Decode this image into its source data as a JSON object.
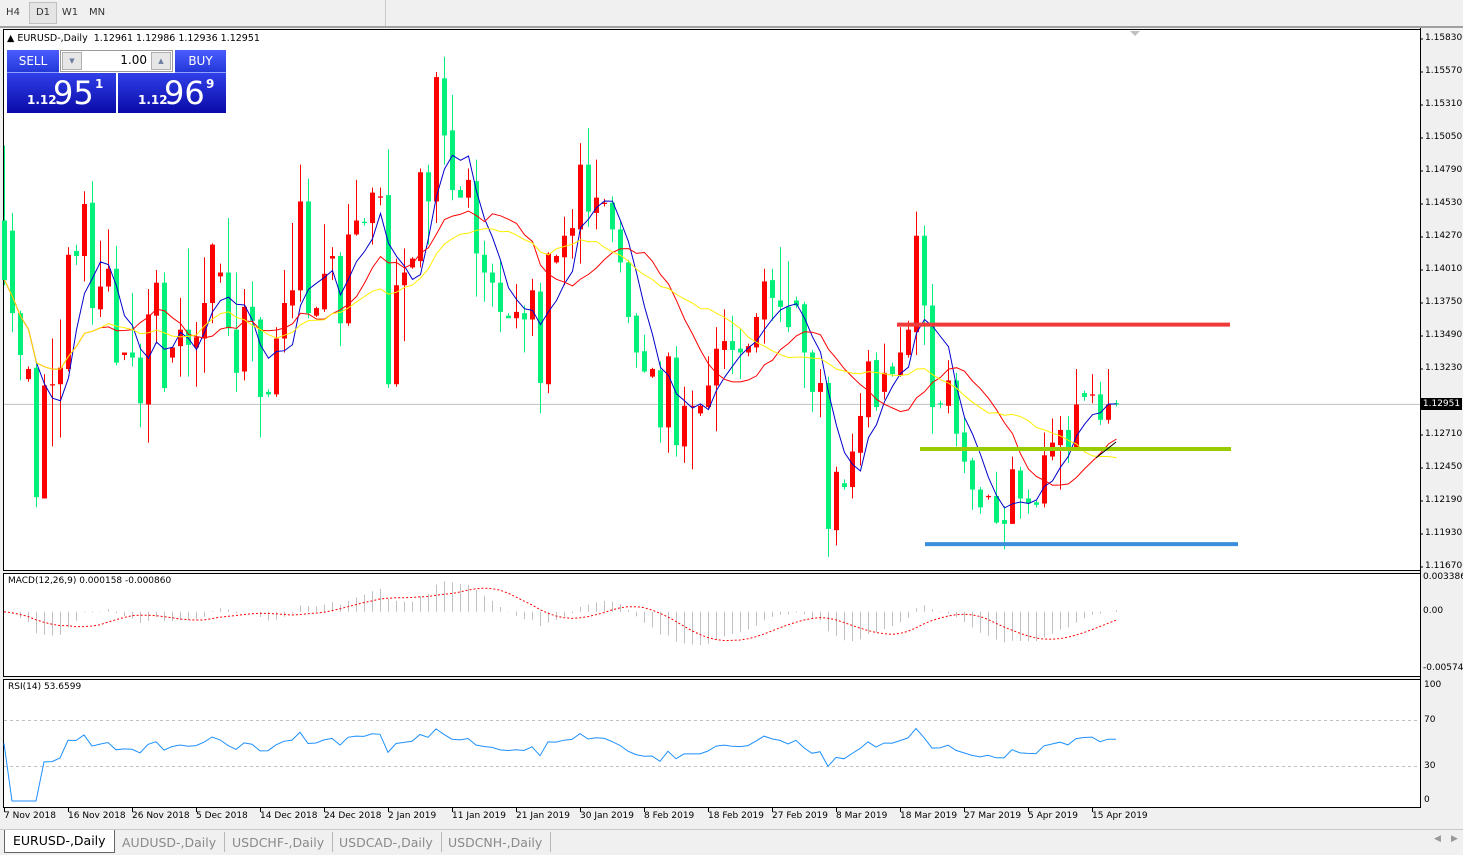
{
  "toolbar": {
    "timeframes": [
      {
        "label": "H4",
        "active": false
      },
      {
        "label": "D1",
        "active": true
      },
      {
        "label": "W1",
        "active": false
      },
      {
        "label": "MN",
        "active": false
      }
    ]
  },
  "chart": {
    "symbol_title": "EURUSD-,Daily",
    "ohlc_text": "1.12961 1.12986 1.12936 1.12951",
    "current_price": "1.12951",
    "colors": {
      "bull": "#ff0000",
      "bear": "#00f07a",
      "ma_fast": "#0000cc",
      "ma_mid": "#ff0000",
      "ma_slow": "#ffee00",
      "macd_hist": "#c0c0c0",
      "macd_signal": "#ff0000",
      "rsi": "#1e90ff",
      "hline_red": "#f03a3a",
      "hline_green": "#99cc00",
      "hline_blue": "#3a8fdc"
    },
    "price_axis": [
      "1.15830",
      "1.15570",
      "1.15310",
      "1.15050",
      "1.14790",
      "1.14530",
      "1.14270",
      "1.14010",
      "1.13750",
      "1.13490",
      "1.13230",
      "1.12710",
      "1.12450",
      "1.12190",
      "1.11930",
      "1.11670"
    ],
    "date_axis": [
      "7 Nov 2018",
      "16 Nov 2018",
      "26 Nov 2018",
      "5 Dec 2018",
      "14 Dec 2018",
      "24 Dec 2018",
      "2 Jan 2019",
      "11 Jan 2019",
      "21 Jan 2019",
      "30 Jan 2019",
      "8 Feb 2019",
      "18 Feb 2019",
      "27 Feb 2019",
      "8 Mar 2019",
      "18 Mar 2019",
      "27 Mar 2019",
      "5 Apr 2019",
      "15 Apr 2019"
    ],
    "horizontal_lines": [
      {
        "color": "hline_red",
        "price": 1.1358
      },
      {
        "color": "hline_green",
        "price": 1.126
      },
      {
        "color": "hline_blue",
        "price": 1.1185
      }
    ]
  },
  "one_click": {
    "sell_label": "SELL",
    "buy_label": "BUY",
    "lot": "1.00",
    "sell_price": {
      "prefix": "1.12",
      "big": "95",
      "sup": "1"
    },
    "buy_price": {
      "prefix": "1.12",
      "big": "96",
      "sup": "9"
    }
  },
  "macd": {
    "title": "MACD(12,26,9) 0.000158 -0.000860",
    "axis": [
      "0.003386",
      "0.00",
      "-0.00574"
    ],
    "range": [
      -0.00574,
      0.003386
    ]
  },
  "rsi": {
    "title": "RSI(14) 53.6599",
    "axis": [
      "100",
      "70",
      "30",
      "0"
    ],
    "levels": [
      70,
      30
    ]
  },
  "tabs": [
    {
      "label": "EURUSD-,Daily",
      "active": true
    },
    {
      "label": "AUDUSD-,Daily",
      "active": false
    },
    {
      "label": "USDCHF-,Daily",
      "active": false
    },
    {
      "label": "USDCAD-,Daily",
      "active": false
    },
    {
      "label": "USDCNH-,Daily",
      "active": false
    }
  ],
  "chart_data": {
    "type": "candlestick",
    "price_range": [
      1.1167,
      1.1583
    ],
    "ohlc": [
      [
        1.144,
        1.1499,
        1.1389,
        1.1393
      ],
      [
        1.1432,
        1.1446,
        1.1352,
        1.1367
      ],
      [
        1.1367,
        1.1369,
        1.1314,
        1.1334
      ],
      [
        1.1315,
        1.1325,
        1.1313,
        1.1323
      ],
      [
        1.1324,
        1.1329,
        1.1214,
        1.1222
      ],
      [
        1.1221,
        1.1319,
        1.1221,
        1.131
      ],
      [
        1.131,
        1.1347,
        1.1262,
        1.1311
      ],
      [
        1.1311,
        1.1362,
        1.1269,
        1.1324
      ],
      [
        1.1323,
        1.1419,
        1.1321,
        1.1413
      ],
      [
        1.1416,
        1.1421,
        1.1405,
        1.1412
      ],
      [
        1.1412,
        1.1463,
        1.1392,
        1.1453
      ],
      [
        1.1454,
        1.1471,
        1.1358,
        1.1371
      ],
      [
        1.137,
        1.1424,
        1.1364,
        1.1388
      ],
      [
        1.1388,
        1.1433,
        1.1384,
        1.1402
      ],
      [
        1.1402,
        1.142,
        1.1326,
        1.1328
      ],
      [
        1.1334,
        1.1336,
        1.133,
        1.1336
      ],
      [
        1.1336,
        1.1383,
        1.1325,
        1.1332
      ],
      [
        1.1332,
        1.1343,
        1.1277,
        1.1296
      ],
      [
        1.1295,
        1.1386,
        1.1265,
        1.1366
      ],
      [
        1.1365,
        1.1401,
        1.1343,
        1.1391
      ],
      [
        1.1391,
        1.1399,
        1.1305,
        1.1308
      ],
      [
        1.1332,
        1.134,
        1.1328,
        1.134
      ],
      [
        1.1341,
        1.1379,
        1.1317,
        1.1354
      ],
      [
        1.1354,
        1.1418,
        1.1317,
        1.1342
      ],
      [
        1.134,
        1.136,
        1.1309,
        1.1348
      ],
      [
        1.1347,
        1.1411,
        1.132,
        1.1375
      ],
      [
        1.1375,
        1.1422,
        1.1359,
        1.1421
      ],
      [
        1.1396,
        1.1406,
        1.1391,
        1.1399
      ],
      [
        1.1399,
        1.1442,
        1.1349,
        1.1355
      ],
      [
        1.1354,
        1.1399,
        1.1305,
        1.132
      ],
      [
        1.1321,
        1.1386,
        1.1314,
        1.1372
      ],
      [
        1.1372,
        1.1392,
        1.1329,
        1.1361
      ],
      [
        1.1362,
        1.1364,
        1.1269,
        1.1301
      ],
      [
        1.1305,
        1.1307,
        1.1301,
        1.1303
      ],
      [
        1.1303,
        1.1356,
        1.1301,
        1.1347
      ],
      [
        1.1347,
        1.1401,
        1.1336,
        1.1375
      ],
      [
        1.1373,
        1.1438,
        1.1363,
        1.1385
      ],
      [
        1.1385,
        1.1484,
        1.1376,
        1.1455
      ],
      [
        1.1455,
        1.1473,
        1.1363,
        1.1367
      ],
      [
        1.1365,
        1.1372,
        1.1364,
        1.1371
      ],
      [
        1.137,
        1.1437,
        1.1368,
        1.1398
      ],
      [
        1.141,
        1.1419,
        1.1393,
        1.1412
      ],
      [
        1.1412,
        1.1415,
        1.1341,
        1.1359
      ],
      [
        1.1359,
        1.1453,
        1.1357,
        1.1429
      ],
      [
        1.1429,
        1.1472,
        1.1428,
        1.144
      ],
      [
        1.1439,
        1.1442,
        1.1436,
        1.1438
      ],
      [
        1.1438,
        1.1466,
        1.1421,
        1.1462
      ],
      [
        1.1458,
        1.1466,
        1.1452,
        1.1459
      ],
      [
        1.146,
        1.1496,
        1.1308,
        1.1311
      ],
      [
        1.1311,
        1.141,
        1.1309,
        1.1389
      ],
      [
        1.1389,
        1.1418,
        1.1345,
        1.1399
      ],
      [
        1.1403,
        1.1411,
        1.1402,
        1.141
      ],
      [
        1.1408,
        1.1481,
        1.1403,
        1.1478
      ],
      [
        1.1478,
        1.1484,
        1.1421,
        1.1455
      ],
      [
        1.1455,
        1.1557,
        1.1438,
        1.1553
      ],
      [
        1.1552,
        1.1569,
        1.1484,
        1.1507
      ],
      [
        1.1511,
        1.1539,
        1.1456,
        1.1464
      ],
      [
        1.1464,
        1.1467,
        1.1458,
        1.1458
      ],
      [
        1.1458,
        1.1481,
        1.145,
        1.1472
      ],
      [
        1.1471,
        1.1488,
        1.138,
        1.1414
      ],
      [
        1.1413,
        1.1424,
        1.1376,
        1.1399
      ],
      [
        1.1399,
        1.1406,
        1.1372,
        1.1391
      ],
      [
        1.1391,
        1.1409,
        1.1352,
        1.1368
      ],
      [
        1.1365,
        1.1367,
        1.1363,
        1.1363
      ],
      [
        1.1363,
        1.139,
        1.1355,
        1.1368
      ],
      [
        1.1367,
        1.1373,
        1.1336,
        1.1362
      ],
      [
        1.1362,
        1.1394,
        1.1349,
        1.1385
      ],
      [
        1.1384,
        1.1391,
        1.1288,
        1.1312
      ],
      [
        1.1311,
        1.1415,
        1.1304,
        1.1414
      ],
      [
        1.1407,
        1.1413,
        1.1406,
        1.1412
      ],
      [
        1.1411,
        1.1443,
        1.1389,
        1.1428
      ],
      [
        1.1428,
        1.1449,
        1.141,
        1.1434
      ],
      [
        1.1433,
        1.1501,
        1.1406,
        1.1484
      ],
      [
        1.1484,
        1.1513,
        1.1435,
        1.1447
      ],
      [
        1.1446,
        1.1488,
        1.1433,
        1.1458
      ],
      [
        1.1453,
        1.1457,
        1.1451,
        1.1454
      ],
      [
        1.1454,
        1.1459,
        1.1423,
        1.1433
      ],
      [
        1.1433,
        1.1439,
        1.1399,
        1.1407
      ],
      [
        1.1407,
        1.1409,
        1.1359,
        1.1364
      ],
      [
        1.1365,
        1.1367,
        1.1324,
        1.1336
      ],
      [
        1.1337,
        1.135,
        1.132,
        1.1321
      ],
      [
        1.1317,
        1.1324,
        1.1316,
        1.1323
      ],
      [
        1.1322,
        1.1329,
        1.1265,
        1.1277
      ],
      [
        1.1277,
        1.1336,
        1.1257,
        1.1333
      ],
      [
        1.1332,
        1.1341,
        1.1254,
        1.1263
      ],
      [
        1.1262,
        1.1309,
        1.1249,
        1.1294
      ],
      [
        1.1293,
        1.1306,
        1.1244,
        1.1294
      ],
      [
        1.1288,
        1.1295,
        1.1286,
        1.1294
      ],
      [
        1.1293,
        1.1333,
        1.1292,
        1.131
      ],
      [
        1.131,
        1.1356,
        1.1274,
        1.1339
      ],
      [
        1.1338,
        1.137,
        1.1323,
        1.1345
      ],
      [
        1.1345,
        1.1365,
        1.1319,
        1.1338
      ],
      [
        1.1339,
        1.1355,
        1.1315,
        1.1336
      ],
      [
        1.1336,
        1.1343,
        1.1333,
        1.1341
      ],
      [
        1.134,
        1.1367,
        1.1336,
        1.1364
      ],
      [
        1.1362,
        1.1402,
        1.1343,
        1.1392
      ],
      [
        1.1393,
        1.1402,
        1.1361,
        1.1379
      ],
      [
        1.1377,
        1.1419,
        1.136,
        1.1372
      ],
      [
        1.1372,
        1.1408,
        1.1352,
        1.1356
      ],
      [
        1.1377,
        1.138,
        1.1371,
        1.1373
      ],
      [
        1.1374,
        1.1376,
        1.1308,
        1.1336
      ],
      [
        1.1336,
        1.1338,
        1.1289,
        1.1305
      ],
      [
        1.1305,
        1.1323,
        1.1285,
        1.1312
      ],
      [
        1.1312,
        1.1317,
        1.1175,
        1.1197
      ],
      [
        1.1196,
        1.1246,
        1.1184,
        1.1242
      ],
      [
        1.1233,
        1.1236,
        1.1228,
        1.123
      ],
      [
        1.123,
        1.1272,
        1.1221,
        1.1258
      ],
      [
        1.1257,
        1.1304,
        1.1247,
        1.1286
      ],
      [
        1.1285,
        1.1338,
        1.1277,
        1.1329
      ],
      [
        1.133,
        1.1336,
        1.129,
        1.1293
      ],
      [
        1.1305,
        1.1343,
        1.1299,
        1.132
      ],
      [
        1.1325,
        1.1328,
        1.1317,
        1.1319
      ],
      [
        1.1318,
        1.1356,
        1.1317,
        1.1336
      ],
      [
        1.1334,
        1.1361,
        1.1332,
        1.1354
      ],
      [
        1.1352,
        1.1447,
        1.1334,
        1.1428
      ],
      [
        1.1428,
        1.1436,
        1.1342,
        1.1373
      ],
      [
        1.1373,
        1.139,
        1.1272,
        1.1293
      ],
      [
        1.1296,
        1.1298,
        1.1292,
        1.1295
      ],
      [
        1.1294,
        1.133,
        1.1288,
        1.1314
      ],
      [
        1.1314,
        1.132,
        1.1262,
        1.1272
      ],
      [
        1.1273,
        1.1285,
        1.1241,
        1.125
      ],
      [
        1.1251,
        1.1253,
        1.1212,
        1.1228
      ],
      [
        1.1228,
        1.123,
        1.1209,
        1.1214
      ],
      [
        1.1222,
        1.1224,
        1.122,
        1.1223
      ],
      [
        1.1223,
        1.1242,
        1.1201,
        1.1202
      ],
      [
        1.1204,
        1.1215,
        1.1181,
        1.1201
      ],
      [
        1.1201,
        1.1254,
        1.1201,
        1.1244
      ],
      [
        1.1243,
        1.1246,
        1.1205,
        1.1221
      ],
      [
        1.1221,
        1.1228,
        1.1209,
        1.1217
      ],
      [
        1.1218,
        1.122,
        1.1214,
        1.1216
      ],
      [
        1.1217,
        1.1273,
        1.1214,
        1.1255
      ],
      [
        1.1254,
        1.1284,
        1.1251,
        1.1265
      ],
      [
        1.1263,
        1.1286,
        1.1228,
        1.1275
      ],
      [
        1.1275,
        1.1286,
        1.1249,
        1.1261
      ],
      [
        1.1261,
        1.1323,
        1.1259,
        1.1295
      ],
      [
        1.1304,
        1.1306,
        1.1298,
        1.1301
      ],
      [
        1.1302,
        1.1319,
        1.1296,
        1.1303
      ],
      [
        1.1303,
        1.1313,
        1.1279,
        1.1283
      ],
      [
        1.1283,
        1.1323,
        1.128,
        1.1295
      ],
      [
        1.12961,
        1.12986,
        1.12936,
        1.12951
      ]
    ]
  }
}
